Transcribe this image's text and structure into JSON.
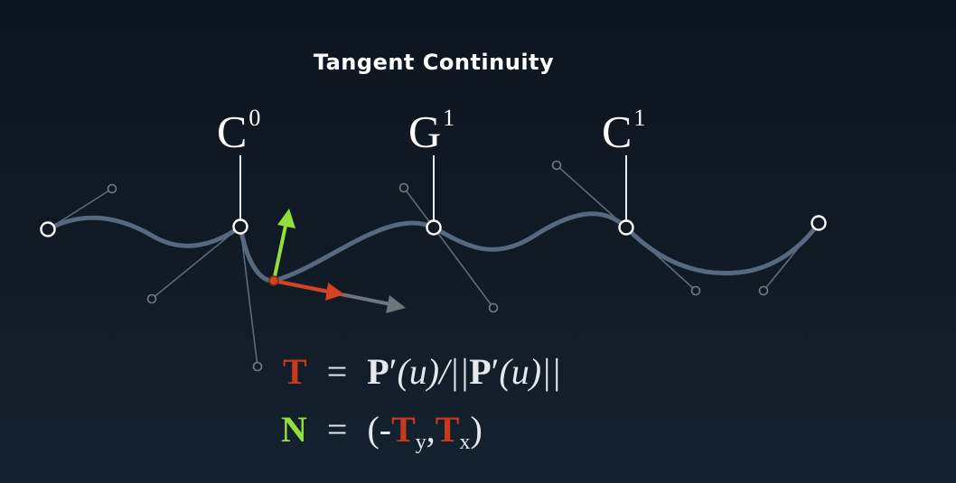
{
  "title": "Tangent Continuity",
  "joints": [
    {
      "letter": "C",
      "sup": "0"
    },
    {
      "letter": "G",
      "sup": "1"
    },
    {
      "letter": "C",
      "sup": "1"
    }
  ],
  "equations": {
    "tangent": {
      "symbol": "T",
      "equals": "=",
      "p1": "P",
      "prime1": "′",
      "arg1": "(u)/||",
      "p2": "P",
      "prime2": "′",
      "arg2": "(u)||"
    },
    "normal": {
      "symbol": "N",
      "equals": "=",
      "open": "(-",
      "t1": "T",
      "sub1": "y",
      "comma": ",",
      "t2": "T",
      "sub2": "x",
      "close": ")"
    }
  },
  "colors": {
    "curve": "#56697e",
    "handle": "#5a6a7a",
    "tangent_vector": "#d6421f",
    "normal_vector": "#93de3c",
    "continuation_vector": "#6e757b"
  }
}
